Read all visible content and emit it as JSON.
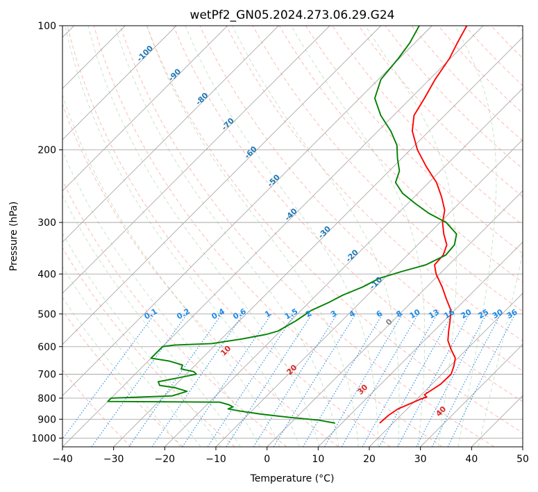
{
  "chart_data": {
    "type": "line",
    "title": "wetPf2_GN05.2024.273.06.29.G24",
    "xlabel": "Temperature (°C)",
    "ylabel": "Pressure (hPa)",
    "xlim": [
      -40,
      50
    ],
    "ylim": [
      1050,
      100
    ],
    "y_scale": "log",
    "skew": "skew-T",
    "grid": true,
    "x_ticks": [
      -40,
      -30,
      -20,
      -10,
      0,
      10,
      20,
      30,
      40,
      50
    ],
    "y_ticks": [
      1000,
      900,
      800,
      700,
      600,
      500,
      400,
      300,
      200,
      100
    ],
    "colors": {
      "temperature": "#ff0000",
      "dewpoint": "#008000",
      "dry_adiabat": "#fa8072",
      "moist_adiabat": "#90c890",
      "mixing_ratio": "#1e88e5",
      "isotherm_labels": "#1f77b4",
      "theta_labels": "#d62728",
      "theta_e_label": "#808080"
    },
    "series": [
      {
        "values": [
          {
            "p": 920,
            "t": 17.4
          },
          {
            "p": 880,
            "t": 17.6
          },
          {
            "p": 850,
            "t": 18.2
          },
          {
            "p": 830,
            "t": 19.3
          },
          {
            "p": 805,
            "t": 20.7
          },
          {
            "p": 795,
            "t": 21.5
          },
          {
            "p": 785,
            "t": 20.6
          },
          {
            "p": 740,
            "t": 21.7
          },
          {
            "p": 700,
            "t": 21.8
          },
          {
            "p": 670,
            "t": 20.8
          },
          {
            "p": 640,
            "t": 19.5
          },
          {
            "p": 610,
            "t": 17.0
          },
          {
            "p": 580,
            "t": 14.6
          },
          {
            "p": 550,
            "t": 12.9
          },
          {
            "p": 520,
            "t": 11.2
          },
          {
            "p": 490,
            "t": 9.3
          },
          {
            "p": 460,
            "t": 6.2
          },
          {
            "p": 430,
            "t": 3.0
          },
          {
            "p": 400,
            "t": -0.7
          },
          {
            "p": 380,
            "t": -2.8
          },
          {
            "p": 360,
            "t": -3.0
          },
          {
            "p": 340,
            "t": -4.3
          },
          {
            "p": 320,
            "t": -7.0
          },
          {
            "p": 300,
            "t": -9.5
          },
          {
            "p": 280,
            "t": -11.5
          },
          {
            "p": 260,
            "t": -14.7
          },
          {
            "p": 240,
            "t": -18.5
          },
          {
            "p": 220,
            "t": -23.5
          },
          {
            "p": 200,
            "t": -28.6
          },
          {
            "p": 180,
            "t": -33.3
          },
          {
            "p": 165,
            "t": -36.0
          },
          {
            "p": 150,
            "t": -37.3
          },
          {
            "p": 135,
            "t": -38.9
          },
          {
            "p": 120,
            "t": -40.2
          },
          {
            "p": 110,
            "t": -41.7
          },
          {
            "p": 100,
            "t": -43.2
          }
        ]
      },
      {
        "values": [
          {
            "p": 920,
            "t": 8.7
          },
          {
            "p": 905,
            "t": 5.0
          },
          {
            "p": 890,
            "t": -1.6
          },
          {
            "p": 875,
            "t": -7.5
          },
          {
            "p": 860,
            "t": -12.2
          },
          {
            "p": 850,
            "t": -15.0
          },
          {
            "p": 840,
            "t": -14.5
          },
          {
            "p": 830,
            "t": -15.7
          },
          {
            "p": 818,
            "t": -18.0
          },
          {
            "p": 815,
            "t": -40.0
          },
          {
            "p": 800,
            "t": -40.0
          },
          {
            "p": 790,
            "t": -28.5
          },
          {
            "p": 770,
            "t": -26.5
          },
          {
            "p": 755,
            "t": -29.5
          },
          {
            "p": 745,
            "t": -33.0
          },
          {
            "p": 730,
            "t": -34.0
          },
          {
            "p": 715,
            "t": -31.0
          },
          {
            "p": 700,
            "t": -28.0
          },
          {
            "p": 690,
            "t": -29.0
          },
          {
            "p": 680,
            "t": -32.0
          },
          {
            "p": 665,
            "t": -32.5
          },
          {
            "p": 650,
            "t": -36.0
          },
          {
            "p": 640,
            "t": -40.0
          },
          {
            "p": 600,
            "t": -40.0
          },
          {
            "p": 595,
            "t": -38.0
          },
          {
            "p": 590,
            "t": -31.0
          },
          {
            "p": 575,
            "t": -26.0
          },
          {
            "p": 560,
            "t": -22.0
          },
          {
            "p": 550,
            "t": -20.5
          },
          {
            "p": 530,
            "t": -19.5
          },
          {
            "p": 520,
            "t": -19.0
          },
          {
            "p": 505,
            "t": -18.5
          },
          {
            "p": 490,
            "t": -18.0
          },
          {
            "p": 470,
            "t": -16.2
          },
          {
            "p": 450,
            "t": -14.8
          },
          {
            "p": 430,
            "t": -12.5
          },
          {
            "p": 410,
            "t": -11.0
          },
          {
            "p": 395,
            "t": -8.0
          },
          {
            "p": 380,
            "t": -4.5
          },
          {
            "p": 360,
            "t": -2.5
          },
          {
            "p": 340,
            "t": -2.8
          },
          {
            "p": 320,
            "t": -4.5
          },
          {
            "p": 300,
            "t": -8.8
          },
          {
            "p": 285,
            "t": -14.0
          },
          {
            "p": 270,
            "t": -18.5
          },
          {
            "p": 255,
            "t": -23.0
          },
          {
            "p": 240,
            "t": -26.5
          },
          {
            "p": 225,
            "t": -28.0
          },
          {
            "p": 210,
            "t": -30.8
          },
          {
            "p": 195,
            "t": -33.5
          },
          {
            "p": 180,
            "t": -37.5
          },
          {
            "p": 165,
            "t": -42.5
          },
          {
            "p": 150,
            "t": -47.0
          },
          {
            "p": 135,
            "t": -49.5
          },
          {
            "p": 120,
            "t": -50.2
          },
          {
            "p": 110,
            "t": -51.0
          },
          {
            "p": 100,
            "t": -52.5
          }
        ]
      }
    ],
    "isotherm_labels": [
      "-100",
      "-90",
      "-80",
      "-70",
      "-60",
      "-50",
      "-40",
      "-30",
      "-20",
      "-10"
    ],
    "mixing_ratio_labels": [
      "0.1",
      "0.2",
      "0.4",
      "0.6",
      "1",
      "1.5",
      "2",
      "3",
      "4",
      "6",
      "8",
      "10",
      "13",
      "16",
      "20",
      "25",
      "30",
      "36"
    ],
    "theta_labels": [
      "10",
      "20",
      "30",
      "40"
    ],
    "theta_e_label": "0"
  }
}
